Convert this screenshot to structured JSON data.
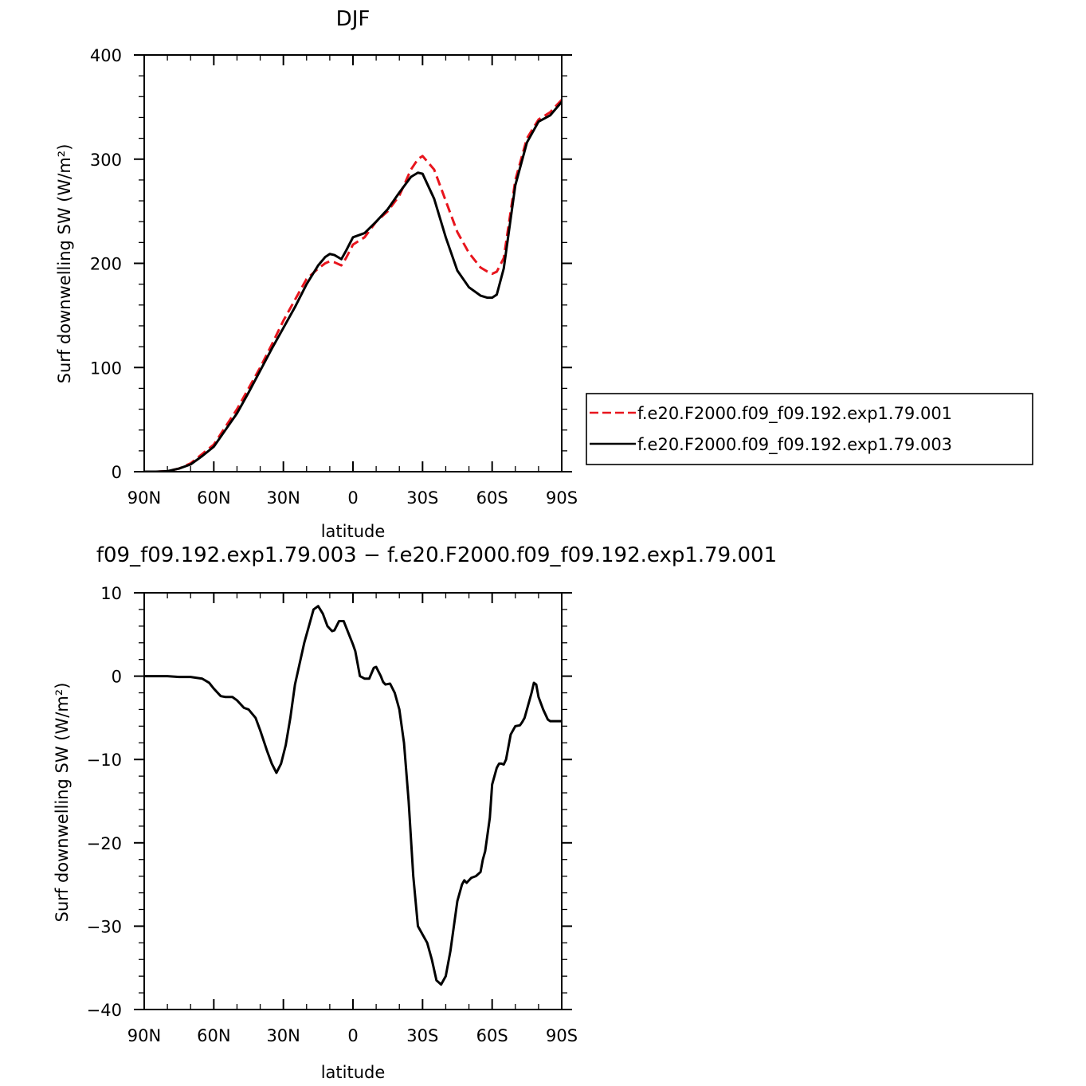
{
  "top_panel": {
    "title": "DJF"
  },
  "bottom_panel": {
    "title": "f09_f09.192.exp1.79.003 − f.e20.F2000.f09_f09.192.exp1.79.001"
  },
  "colors": {
    "series_001": "#e8151d",
    "series_003": "#000000",
    "axis": "#000000"
  },
  "chart_data": [
    {
      "type": "line",
      "title": "DJF",
      "xlabel": "latitude",
      "ylabel": "Surf downwelling SW (W/m²)",
      "x_direction": "north-to-south",
      "xlim": [
        90,
        -90
      ],
      "ylim": [
        0,
        400
      ],
      "xticks": [
        {
          "value": 90,
          "label": "90N"
        },
        {
          "value": 60,
          "label": "60N"
        },
        {
          "value": 30,
          "label": "30N"
        },
        {
          "value": 0,
          "label": "0"
        },
        {
          "value": -30,
          "label": "30S"
        },
        {
          "value": -60,
          "label": "60S"
        },
        {
          "value": -90,
          "label": "90S"
        }
      ],
      "yticks": [
        {
          "value": 0,
          "label": "0"
        },
        {
          "value": 100,
          "label": "100"
        },
        {
          "value": 200,
          "label": "200"
        },
        {
          "value": 300,
          "label": "300"
        },
        {
          "value": 400,
          "label": "400"
        }
      ],
      "legend_position": "right",
      "x": [
        90,
        85,
        80,
        75,
        70,
        65,
        60,
        55,
        50,
        45,
        40,
        35,
        30,
        25,
        20,
        15,
        12,
        10,
        8,
        5,
        3,
        0,
        -5,
        -10,
        -15,
        -20,
        -25,
        -28,
        -30,
        -35,
        -40,
        -45,
        -50,
        -55,
        -58,
        -60,
        -62,
        -65,
        -70,
        -75,
        -80,
        -85,
        -90
      ],
      "series": [
        {
          "name": "f.e20.F2000.f09_f09.192.exp1.79.001",
          "style": "dashed",
          "color": "#e8151d",
          "values": [
            0,
            0,
            0.5,
            3,
            8,
            17,
            26,
            43,
            60,
            80,
            100,
            122,
            145,
            165,
            185,
            195,
            200,
            202,
            201,
            198,
            205,
            218,
            225,
            240,
            250,
            265,
            290,
            300,
            303,
            290,
            260,
            230,
            210,
            196,
            192,
            190,
            192,
            205,
            280,
            320,
            338,
            345,
            357
          ]
        },
        {
          "name": "f.e20.F2000.f09_f09.192.exp1.79.003",
          "style": "solid",
          "color": "#000000",
          "values": [
            0,
            0,
            0.5,
            3,
            7,
            15,
            24,
            40,
            56,
            76,
            97,
            118,
            138,
            158,
            180,
            198,
            206,
            209,
            208,
            204,
            212,
            225,
            229,
            240,
            252,
            268,
            283,
            287,
            286,
            262,
            225,
            193,
            177,
            169,
            167,
            167,
            170,
            195,
            275,
            316,
            336,
            342,
            355
          ]
        }
      ]
    },
    {
      "type": "line",
      "title": "f09_f09.192.exp1.79.003 − f.e20.F2000.f09_f09.192.exp1.79.001",
      "xlabel": "latitude",
      "ylabel": "Surf downwelling SW (W/m²)",
      "x_direction": "north-to-south",
      "xlim": [
        90,
        -90
      ],
      "ylim": [
        -40,
        10
      ],
      "xticks": [
        {
          "value": 90,
          "label": "90N"
        },
        {
          "value": 60,
          "label": "60N"
        },
        {
          "value": 30,
          "label": "30N"
        },
        {
          "value": 0,
          "label": "0"
        },
        {
          "value": -30,
          "label": "30S"
        },
        {
          "value": -60,
          "label": "60S"
        },
        {
          "value": -90,
          "label": "90S"
        }
      ],
      "yticks": [
        {
          "value": 10,
          "label": "10"
        },
        {
          "value": 0,
          "label": "0"
        },
        {
          "value": -10,
          "label": "−10"
        },
        {
          "value": -20,
          "label": "−20"
        },
        {
          "value": -30,
          "label": "−30"
        },
        {
          "value": -40,
          "label": "−40"
        }
      ],
      "x": [
        90,
        85,
        80,
        75,
        70,
        65,
        62,
        60,
        57,
        55,
        52,
        50,
        47,
        45,
        42,
        40,
        37,
        35,
        33,
        31,
        29,
        27,
        25,
        23,
        21,
        19,
        17,
        15,
        13,
        11,
        9,
        8,
        6,
        4,
        3,
        1,
        0,
        -1,
        -2,
        -3,
        -5,
        -7,
        -9,
        -10,
        -12,
        -13,
        -14,
        -16,
        -18,
        -20,
        -22,
        -24,
        -26,
        -28,
        -30,
        -32,
        -34,
        -36,
        -38,
        -40,
        -42,
        -44,
        -45,
        -46,
        -47,
        -48,
        -49,
        -51,
        -53,
        -55,
        -56,
        -57,
        -59,
        -60,
        -62,
        -63,
        -64,
        -65,
        -66,
        -67,
        -68,
        -70,
        -72,
        -73,
        -74,
        -75,
        -76,
        -77,
        -78,
        -79,
        -80,
        -82,
        -84,
        -85,
        -86,
        -87,
        -88,
        -89,
        -90
      ],
      "series": [
        {
          "name": "",
          "color": "#000000",
          "values": [
            0,
            0,
            0,
            -0.1,
            -0.1,
            -0.3,
            -0.8,
            -1.5,
            -2.4,
            -2.5,
            -2.5,
            -2.9,
            -3.8,
            -4.0,
            -5.0,
            -6.5,
            -9.0,
            -10.5,
            -11.6,
            -10.5,
            -8.3,
            -5.0,
            -1.0,
            1.5,
            4.0,
            6.0,
            8.0,
            8.4,
            7.5,
            6.0,
            5.4,
            5.5,
            6.6,
            6.6,
            5.9,
            4.5,
            3.8,
            3.0,
            1.5,
            0.0,
            -0.3,
            -0.3,
            1.0,
            1.1,
            0.0,
            -0.7,
            -1.0,
            -0.9,
            -2.0,
            -4.0,
            -8.0,
            -15.0,
            -24.0,
            -30.0,
            -31.0,
            -32.0,
            -34.0,
            -36.5,
            -37.0,
            -36.0,
            -33.0,
            -29.0,
            -27.0,
            -26.0,
            -25.0,
            -24.5,
            -24.8,
            -24.2,
            -24.0,
            -23.5,
            -22.0,
            -21.0,
            -17.0,
            -13.0,
            -11.0,
            -10.5,
            -10.5,
            -10.6,
            -10.0,
            -8.5,
            -7.0,
            -6.0,
            -5.9,
            -5.5,
            -5.0,
            -4.0,
            -3.0,
            -2.0,
            -0.8,
            -1.0,
            -2.5,
            -4.0,
            -5.2,
            -5.4,
            -5.4,
            -5.4,
            -5.4,
            -5.4,
            -5.4
          ]
        }
      ]
    }
  ]
}
